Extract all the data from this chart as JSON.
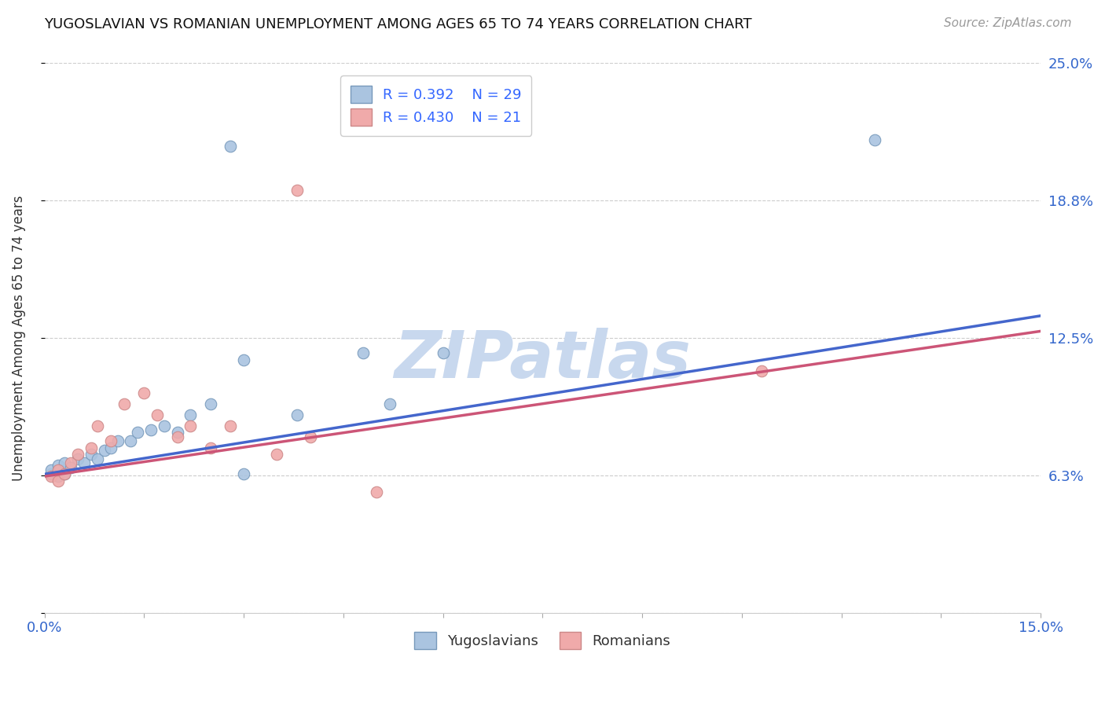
{
  "title": "YUGOSLAVIAN VS ROMANIAN UNEMPLOYMENT AMONG AGES 65 TO 74 YEARS CORRELATION CHART",
  "source": "Source: ZipAtlas.com",
  "ylabel": "Unemployment Among Ages 65 to 74 years",
  "xlim": [
    0.0,
    0.15
  ],
  "ylim": [
    0.0,
    0.25
  ],
  "ytick_positions": [
    0.0,
    0.0625,
    0.125,
    0.1875,
    0.25
  ],
  "ytick_labels": [
    "",
    "6.3%",
    "12.5%",
    "18.8%",
    "25.0%"
  ],
  "xtick_positions": [
    0.0,
    0.015,
    0.03,
    0.045,
    0.06,
    0.075,
    0.09,
    0.105,
    0.12,
    0.135,
    0.15
  ],
  "xtick_labels": [
    "0.0%",
    "",
    "",
    "",
    "",
    "",
    "",
    "",
    "",
    "",
    "15.0%"
  ],
  "grid_color": "#cccccc",
  "bg_color": "#ffffff",
  "blue_face": "#aac4e0",
  "blue_edge": "#7799bb",
  "pink_face": "#f0aaaa",
  "pink_edge": "#cc8888",
  "blue_line": "#4466cc",
  "pink_line": "#cc5577",
  "legend_text_color": "#3366ff",
  "axis_tick_color": "#3366cc",
  "R_yug": 0.392,
  "N_yug": 29,
  "R_rom": 0.43,
  "N_rom": 21,
  "yug_x": [
    0.001,
    0.001,
    0.002,
    0.002,
    0.003,
    0.003,
    0.004,
    0.005,
    0.006,
    0.007,
    0.008,
    0.009,
    0.01,
    0.011,
    0.013,
    0.014,
    0.016,
    0.018,
    0.02,
    0.022,
    0.025,
    0.03,
    0.038,
    0.048,
    0.052,
    0.028,
    0.125,
    0.03,
    0.06
  ],
  "yug_y": [
    0.063,
    0.065,
    0.062,
    0.067,
    0.063,
    0.068,
    0.066,
    0.07,
    0.068,
    0.072,
    0.07,
    0.074,
    0.075,
    0.078,
    0.078,
    0.082,
    0.083,
    0.085,
    0.082,
    0.09,
    0.095,
    0.115,
    0.09,
    0.118,
    0.095,
    0.212,
    0.215,
    0.063,
    0.118
  ],
  "rom_x": [
    0.001,
    0.002,
    0.002,
    0.003,
    0.004,
    0.005,
    0.007,
    0.008,
    0.01,
    0.012,
    0.015,
    0.017,
    0.02,
    0.022,
    0.025,
    0.028,
    0.035,
    0.04,
    0.05,
    0.108,
    0.038
  ],
  "rom_y": [
    0.062,
    0.06,
    0.065,
    0.063,
    0.068,
    0.072,
    0.075,
    0.085,
    0.078,
    0.095,
    0.1,
    0.09,
    0.08,
    0.085,
    0.075,
    0.085,
    0.072,
    0.08,
    0.055,
    0.11,
    0.192
  ],
  "line_yug_x0": 0.0,
  "line_yug_y0": 0.063,
  "line_yug_x1": 0.15,
  "line_yug_y1": 0.135,
  "line_rom_x0": 0.0,
  "line_rom_y0": 0.062,
  "line_rom_x1": 0.15,
  "line_rom_y1": 0.128,
  "marker_size": 110,
  "line_width": 2.5,
  "title_fontsize": 13,
  "source_fontsize": 11,
  "axis_label_fontsize": 12,
  "tick_fontsize": 13,
  "legend_fontsize": 13,
  "watermark_text": "ZIPatlas",
  "watermark_color": "#c8d8ee",
  "watermark_fontsize": 60
}
